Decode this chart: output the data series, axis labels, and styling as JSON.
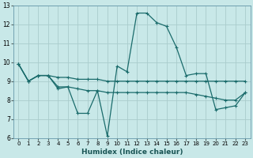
{
  "xlabel": "Humidex (Indice chaleur)",
  "ylabel": "",
  "background_color": "#c8e8e8",
  "line_color": "#1a6b6b",
  "grid_color": "#b0d8d8",
  "xlim": [
    -0.5,
    23.5
  ],
  "ylim": [
    6,
    13
  ],
  "xticks": [
    0,
    1,
    2,
    3,
    4,
    5,
    6,
    7,
    8,
    9,
    10,
    11,
    12,
    13,
    14,
    15,
    16,
    17,
    18,
    19,
    20,
    21,
    22,
    23
  ],
  "yticks": [
    6,
    7,
    8,
    9,
    10,
    11,
    12,
    13
  ],
  "line1_x": [
    0,
    1,
    2,
    3,
    4,
    5,
    6,
    7,
    8,
    9,
    10,
    11,
    12,
    13,
    14,
    15,
    16,
    17,
    18,
    19,
    20,
    21,
    22,
    23
  ],
  "line1_y": [
    9.9,
    9.0,
    9.3,
    9.3,
    8.6,
    8.7,
    7.3,
    7.3,
    8.5,
    6.1,
    9.8,
    9.5,
    12.6,
    12.6,
    12.1,
    11.9,
    10.8,
    9.3,
    9.4,
    9.4,
    7.5,
    7.6,
    7.7,
    8.4
  ],
  "line2_x": [
    0,
    1,
    2,
    3,
    4,
    5,
    6,
    7,
    8,
    9,
    10,
    11,
    12,
    13,
    14,
    15,
    16,
    17,
    18,
    19,
    20,
    21,
    22,
    23
  ],
  "line2_y": [
    9.9,
    9.0,
    9.3,
    9.3,
    8.7,
    8.7,
    8.6,
    8.5,
    8.5,
    8.4,
    8.4,
    8.4,
    8.4,
    8.4,
    8.4,
    8.4,
    8.4,
    8.4,
    8.3,
    8.2,
    8.1,
    8.0,
    8.0,
    8.4
  ],
  "line3_x": [
    0,
    1,
    2,
    3,
    4,
    5,
    6,
    7,
    8,
    9,
    10,
    11,
    12,
    13,
    14,
    15,
    16,
    17,
    18,
    19,
    20,
    21,
    22,
    23
  ],
  "line3_y": [
    9.9,
    9.0,
    9.3,
    9.3,
    9.2,
    9.2,
    9.1,
    9.1,
    9.1,
    9.0,
    9.0,
    9.0,
    9.0,
    9.0,
    9.0,
    9.0,
    9.0,
    9.0,
    9.0,
    9.0,
    9.0,
    9.0,
    9.0,
    9.0
  ]
}
